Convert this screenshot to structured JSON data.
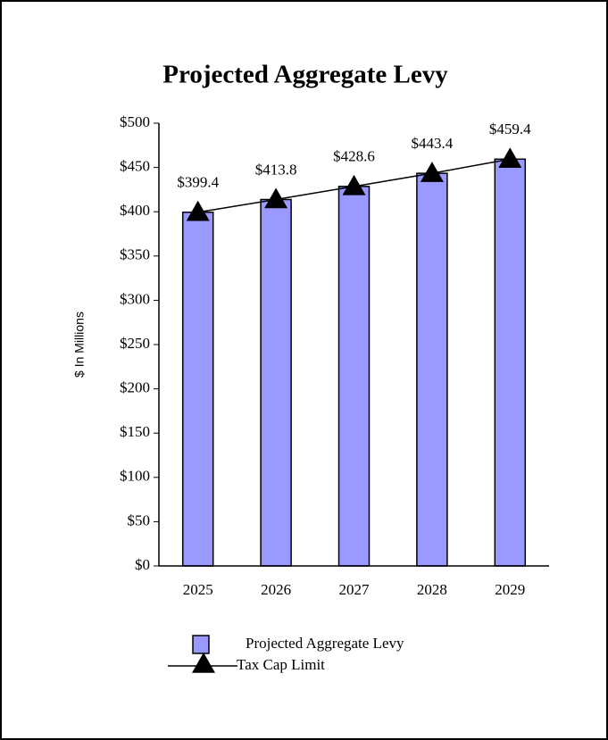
{
  "chart_data": {
    "type": "bar",
    "title": "Projected Aggregate Levy",
    "y_label": "$ In Millions",
    "categories": [
      "2025",
      "2026",
      "2027",
      "2028",
      "2029"
    ],
    "series": [
      {
        "name": "Projected Aggregate Levy",
        "type": "bar",
        "color": "#9999ff",
        "values": [
          399.4,
          413.8,
          428.6,
          443.4,
          459.4
        ],
        "value_labels": [
          "$399.4",
          "$413.8",
          "$428.6",
          "$443.4",
          "$459.4"
        ]
      },
      {
        "name": "Tax Cap Limit",
        "type": "line",
        "color": "#000000",
        "values": [
          399.4,
          413.8,
          428.6,
          443.4,
          459.4
        ]
      }
    ],
    "ylim": [
      0,
      500
    ],
    "yticks": [
      {
        "value": 0,
        "label": "$0"
      },
      {
        "value": 50,
        "label": "$50"
      },
      {
        "value": 100,
        "label": "$100"
      },
      {
        "value": 150,
        "label": "$150"
      },
      {
        "value": 200,
        "label": "$200"
      },
      {
        "value": 250,
        "label": "$250"
      },
      {
        "value": 300,
        "label": "$300"
      },
      {
        "value": 350,
        "label": "$350"
      },
      {
        "value": 400,
        "label": "$400"
      },
      {
        "value": 450,
        "label": "$450"
      },
      {
        "value": 500,
        "label": "$500"
      }
    ],
    "grid": false,
    "legend": "bottom"
  }
}
